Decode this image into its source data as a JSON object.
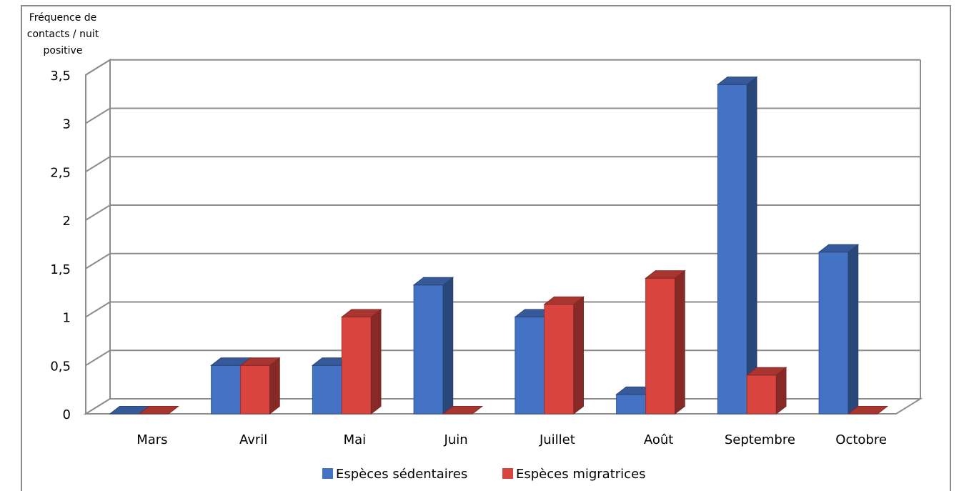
{
  "chart_data": {
    "type": "bar",
    "ylabel": "Fréquence de contacts / nuit positive",
    "ylabel_lines": [
      "Fréquence de",
      "contacts / nuit",
      "positive"
    ],
    "categories": [
      "Mars",
      "Avril",
      "Mai",
      "Juin",
      "Juillet",
      "Août",
      "Septembre",
      "Octobre"
    ],
    "series": [
      {
        "name": "Espèces sédentaires",
        "values": [
          0,
          0.5,
          0.5,
          1.33,
          1,
          0.2,
          3.4,
          1.67
        ],
        "color": "#4472C4"
      },
      {
        "name": "Espèces migratrices",
        "values": [
          0,
          0.5,
          1,
          0,
          1.13,
          1.4,
          0.4,
          0
        ],
        "color": "#D9443F"
      }
    ],
    "yticks": [
      "0",
      "0,5",
      "1",
      "1,5",
      "2",
      "2,5",
      "3",
      "3,5"
    ],
    "ylim": [
      0,
      3.5
    ],
    "grid": true,
    "legend": "bottom",
    "style": "3d-clustered-column"
  }
}
